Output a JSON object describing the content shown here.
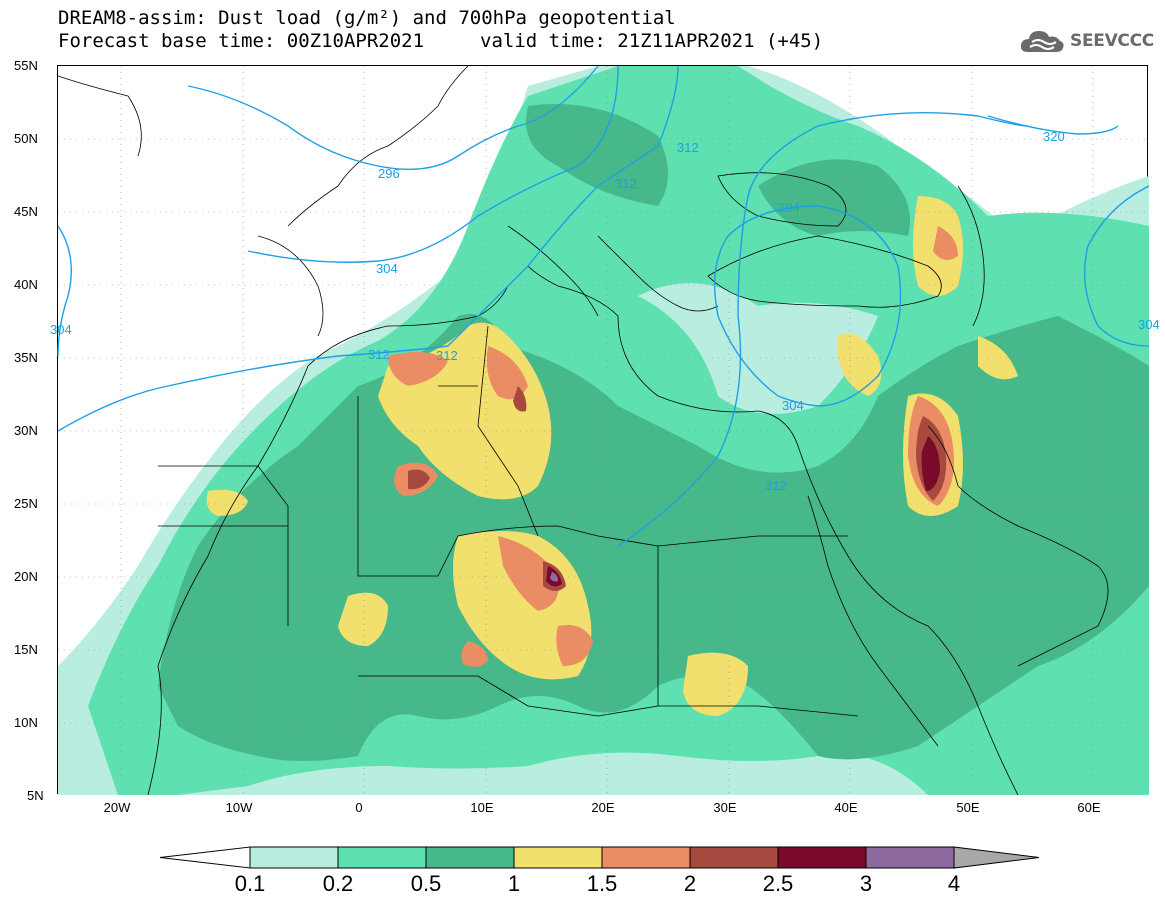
{
  "header": {
    "title_line1": "DREAM8-assim: Dust load (g/m²) and 700hPa geopotential",
    "title_line2_base": "Forecast base time: 00Z10APR2021",
    "title_line2_valid": "valid time: 21Z11APR2021 (+45)"
  },
  "logo": {
    "text": "SEEVCCC",
    "icon": "cloud-icon"
  },
  "map": {
    "lat_labels": [
      "55N",
      "50N",
      "45N",
      "40N",
      "35N",
      "30N",
      "25N",
      "20N",
      "15N",
      "10N",
      "5N"
    ],
    "lon_labels": [
      "20W",
      "10W",
      "0",
      "10E",
      "20E",
      "30E",
      "40E",
      "50E",
      "60E"
    ],
    "contour_labels": [
      "296",
      "304",
      "312",
      "312",
      "312",
      "312",
      "304",
      "304",
      "312",
      "320",
      "304",
      "304"
    ],
    "colors": {
      "ocean": "#ffffff",
      "land_outline": "#000000",
      "contour": "#1ea0e6"
    }
  },
  "colorbar": {
    "tick_labels": [
      "0.1",
      "0.2",
      "0.5",
      "1",
      "1.5",
      "2",
      "2.5",
      "3",
      "4"
    ],
    "colors": [
      "#ffffff",
      "#b8ede0",
      "#5ee0b0",
      "#47b88a",
      "#f2e06e",
      "#ea8c64",
      "#a64a40",
      "#7a0a2a",
      "#8c6aa0",
      "#a8a8a8"
    ]
  }
}
